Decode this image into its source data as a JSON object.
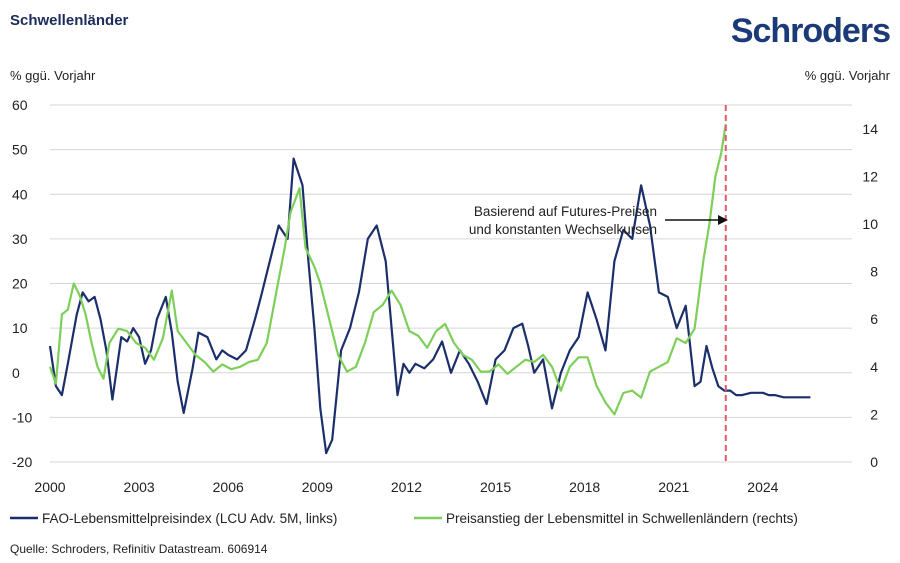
{
  "header": {
    "title": "Schwellenländer",
    "logo_text": "Schroders"
  },
  "chart_data": {
    "type": "line",
    "y_left_label": "% ggü. Vorjahr",
    "y_right_label": "% ggü. Vorjahr",
    "y_left_lim": [
      -20,
      60
    ],
    "y_right_lim": [
      0,
      15
    ],
    "y_left_ticks": [
      "60",
      "50",
      "40",
      "30",
      "20",
      "10",
      "0",
      "-10",
      "-20"
    ],
    "y_right_ticks": [
      "14",
      "12",
      "10",
      "8",
      "6",
      "4",
      "2",
      "0"
    ],
    "x_lim": [
      2000,
      2027
    ],
    "x_ticks": [
      "2000",
      "2003",
      "2006",
      "2009",
      "2012",
      "2015",
      "2018",
      "2021",
      "2024"
    ],
    "grid": "horizontal",
    "vline_x": 2022.75,
    "colors": {
      "fao": "#1b2f6b",
      "emerging": "#7dcf5a",
      "vline": "#e05a6a",
      "grid": "#d6d6d6"
    },
    "annotation": {
      "lines": [
        "Basierend auf Futures-Preisen",
        "und konstanten Wechselkursen"
      ]
    },
    "series": [
      {
        "name": "FAO-Lebensmittelpreisindex (LCU Adv. 5M, links)",
        "axis": "left",
        "x": [
          2000.0,
          2000.2,
          2000.4,
          2000.6,
          2000.9,
          2001.1,
          2001.3,
          2001.5,
          2001.7,
          2001.9,
          2002.1,
          2002.4,
          2002.6,
          2002.8,
          2003.0,
          2003.2,
          2003.4,
          2003.6,
          2003.9,
          2004.1,
          2004.3,
          2004.5,
          2004.8,
          2005.0,
          2005.3,
          2005.6,
          2005.8,
          2006.0,
          2006.3,
          2006.6,
          2006.9,
          2007.1,
          2007.4,
          2007.7,
          2008.0,
          2008.2,
          2008.5,
          2008.7,
          2008.9,
          2009.1,
          2009.3,
          2009.5,
          2009.8,
          2010.1,
          2010.4,
          2010.7,
          2011.0,
          2011.3,
          2011.5,
          2011.7,
          2011.9,
          2012.1,
          2012.3,
          2012.6,
          2012.9,
          2013.2,
          2013.5,
          2013.8,
          2014.1,
          2014.4,
          2014.7,
          2015.0,
          2015.3,
          2015.6,
          2015.9,
          2016.1,
          2016.3,
          2016.6,
          2016.9,
          2017.2,
          2017.5,
          2017.8,
          2018.1,
          2018.4,
          2018.7,
          2019.0,
          2019.3,
          2019.6,
          2019.9,
          2020.2,
          2020.5,
          2020.8,
          2021.1,
          2021.4,
          2021.7,
          2021.9,
          2022.1,
          2022.3,
          2022.5,
          2022.7,
          2022.9,
          2023.1,
          2023.3,
          2023.6,
          2023.8,
          2024.0,
          2024.2,
          2024.4,
          2024.7,
          2025.0,
          2025.3,
          2025.6
        ],
        "values": [
          6,
          -3,
          -5,
          2,
          13,
          18,
          16,
          17,
          12,
          5,
          -6,
          8,
          7,
          10,
          8,
          2,
          5,
          12,
          17,
          9,
          -2,
          -9,
          1,
          9,
          8,
          3,
          5,
          4,
          3,
          5,
          12,
          17,
          25,
          33,
          30,
          48,
          42,
          25,
          10,
          -8,
          -18,
          -15,
          5,
          10,
          18,
          30,
          33,
          25,
          10,
          -5,
          2,
          0,
          2,
          1,
          3,
          7,
          0,
          5,
          2,
          -2,
          -7,
          3,
          5,
          10,
          11,
          6,
          0,
          3,
          -8,
          0,
          5,
          8,
          18,
          12,
          5,
          25,
          32,
          30,
          42,
          33,
          18,
          17,
          10,
          15,
          -3,
          -2,
          6,
          1,
          -3,
          -4,
          -4,
          -5,
          -5,
          -4.5,
          -4.5,
          -4.5,
          -5,
          -5,
          -5.5,
          -5.5,
          -5.5,
          -5.5
        ],
        "x_note": "values trimmed to match x count",
        "color": "#1b2f6b"
      },
      {
        "name": "Preisanstieg der Lebensmittel in Schwellenländern (rechts)",
        "axis": "right",
        "x": [
          2000.0,
          2000.2,
          2000.4,
          2000.6,
          2000.8,
          2001.0,
          2001.2,
          2001.4,
          2001.6,
          2001.8,
          2002.0,
          2002.3,
          2002.6,
          2002.9,
          2003.2,
          2003.5,
          2003.8,
          2004.1,
          2004.3,
          2004.6,
          2004.9,
          2005.2,
          2005.5,
          2005.8,
          2006.1,
          2006.4,
          2006.7,
          2007.0,
          2007.3,
          2007.6,
          2007.9,
          2008.1,
          2008.4,
          2008.6,
          2008.9,
          2009.1,
          2009.4,
          2009.7,
          2010.0,
          2010.3,
          2010.6,
          2010.9,
          2011.2,
          2011.5,
          2011.8,
          2012.1,
          2012.4,
          2012.7,
          2013.0,
          2013.3,
          2013.6,
          2013.9,
          2014.2,
          2014.5,
          2014.8,
          2015.1,
          2015.4,
          2015.7,
          2016.0,
          2016.3,
          2016.6,
          2016.9,
          2017.2,
          2017.5,
          2017.8,
          2018.1,
          2018.4,
          2018.7,
          2019.0,
          2019.3,
          2019.6,
          2019.9,
          2020.2,
          2020.5,
          2020.8,
          2021.1,
          2021.4,
          2021.7,
          2022.0,
          2022.2,
          2022.4,
          2022.6,
          2022.75
        ],
        "values": [
          4.0,
          3.3,
          6.2,
          6.4,
          7.5,
          7.0,
          6.2,
          5.0,
          4.0,
          3.5,
          5.0,
          5.6,
          5.5,
          5.0,
          4.8,
          4.3,
          5.2,
          7.2,
          5.5,
          5.0,
          4.5,
          4.2,
          3.8,
          4.1,
          3.9,
          4.0,
          4.2,
          4.3,
          5.0,
          7.0,
          9.0,
          10.5,
          11.5,
          9.0,
          8.2,
          7.5,
          6.0,
          4.5,
          3.8,
          4.0,
          5.0,
          6.3,
          6.6,
          7.2,
          6.6,
          5.5,
          5.3,
          4.8,
          5.5,
          5.8,
          5.0,
          4.5,
          4.3,
          3.8,
          3.8,
          4.1,
          3.7,
          4.0,
          4.3,
          4.2,
          4.5,
          4.0,
          3.0,
          4.0,
          4.4,
          4.4,
          3.2,
          2.5,
          2.0,
          2.9,
          3.0,
          2.7,
          3.8,
          4.0,
          4.2,
          5.2,
          5.0,
          5.6,
          8.5,
          10.0,
          12.0,
          13.0,
          14.2
        ],
        "color": "#7dcf5a"
      }
    ]
  },
  "legend": {
    "fao_label": "FAO-Lebensmittelpreisindex (LCU Adv. 5M, links)",
    "em_label": "Preisanstieg der Lebensmittel in Schwellenländern (rechts)"
  },
  "source": "Quelle: Schroders, Refinitiv Datastream. 606914"
}
